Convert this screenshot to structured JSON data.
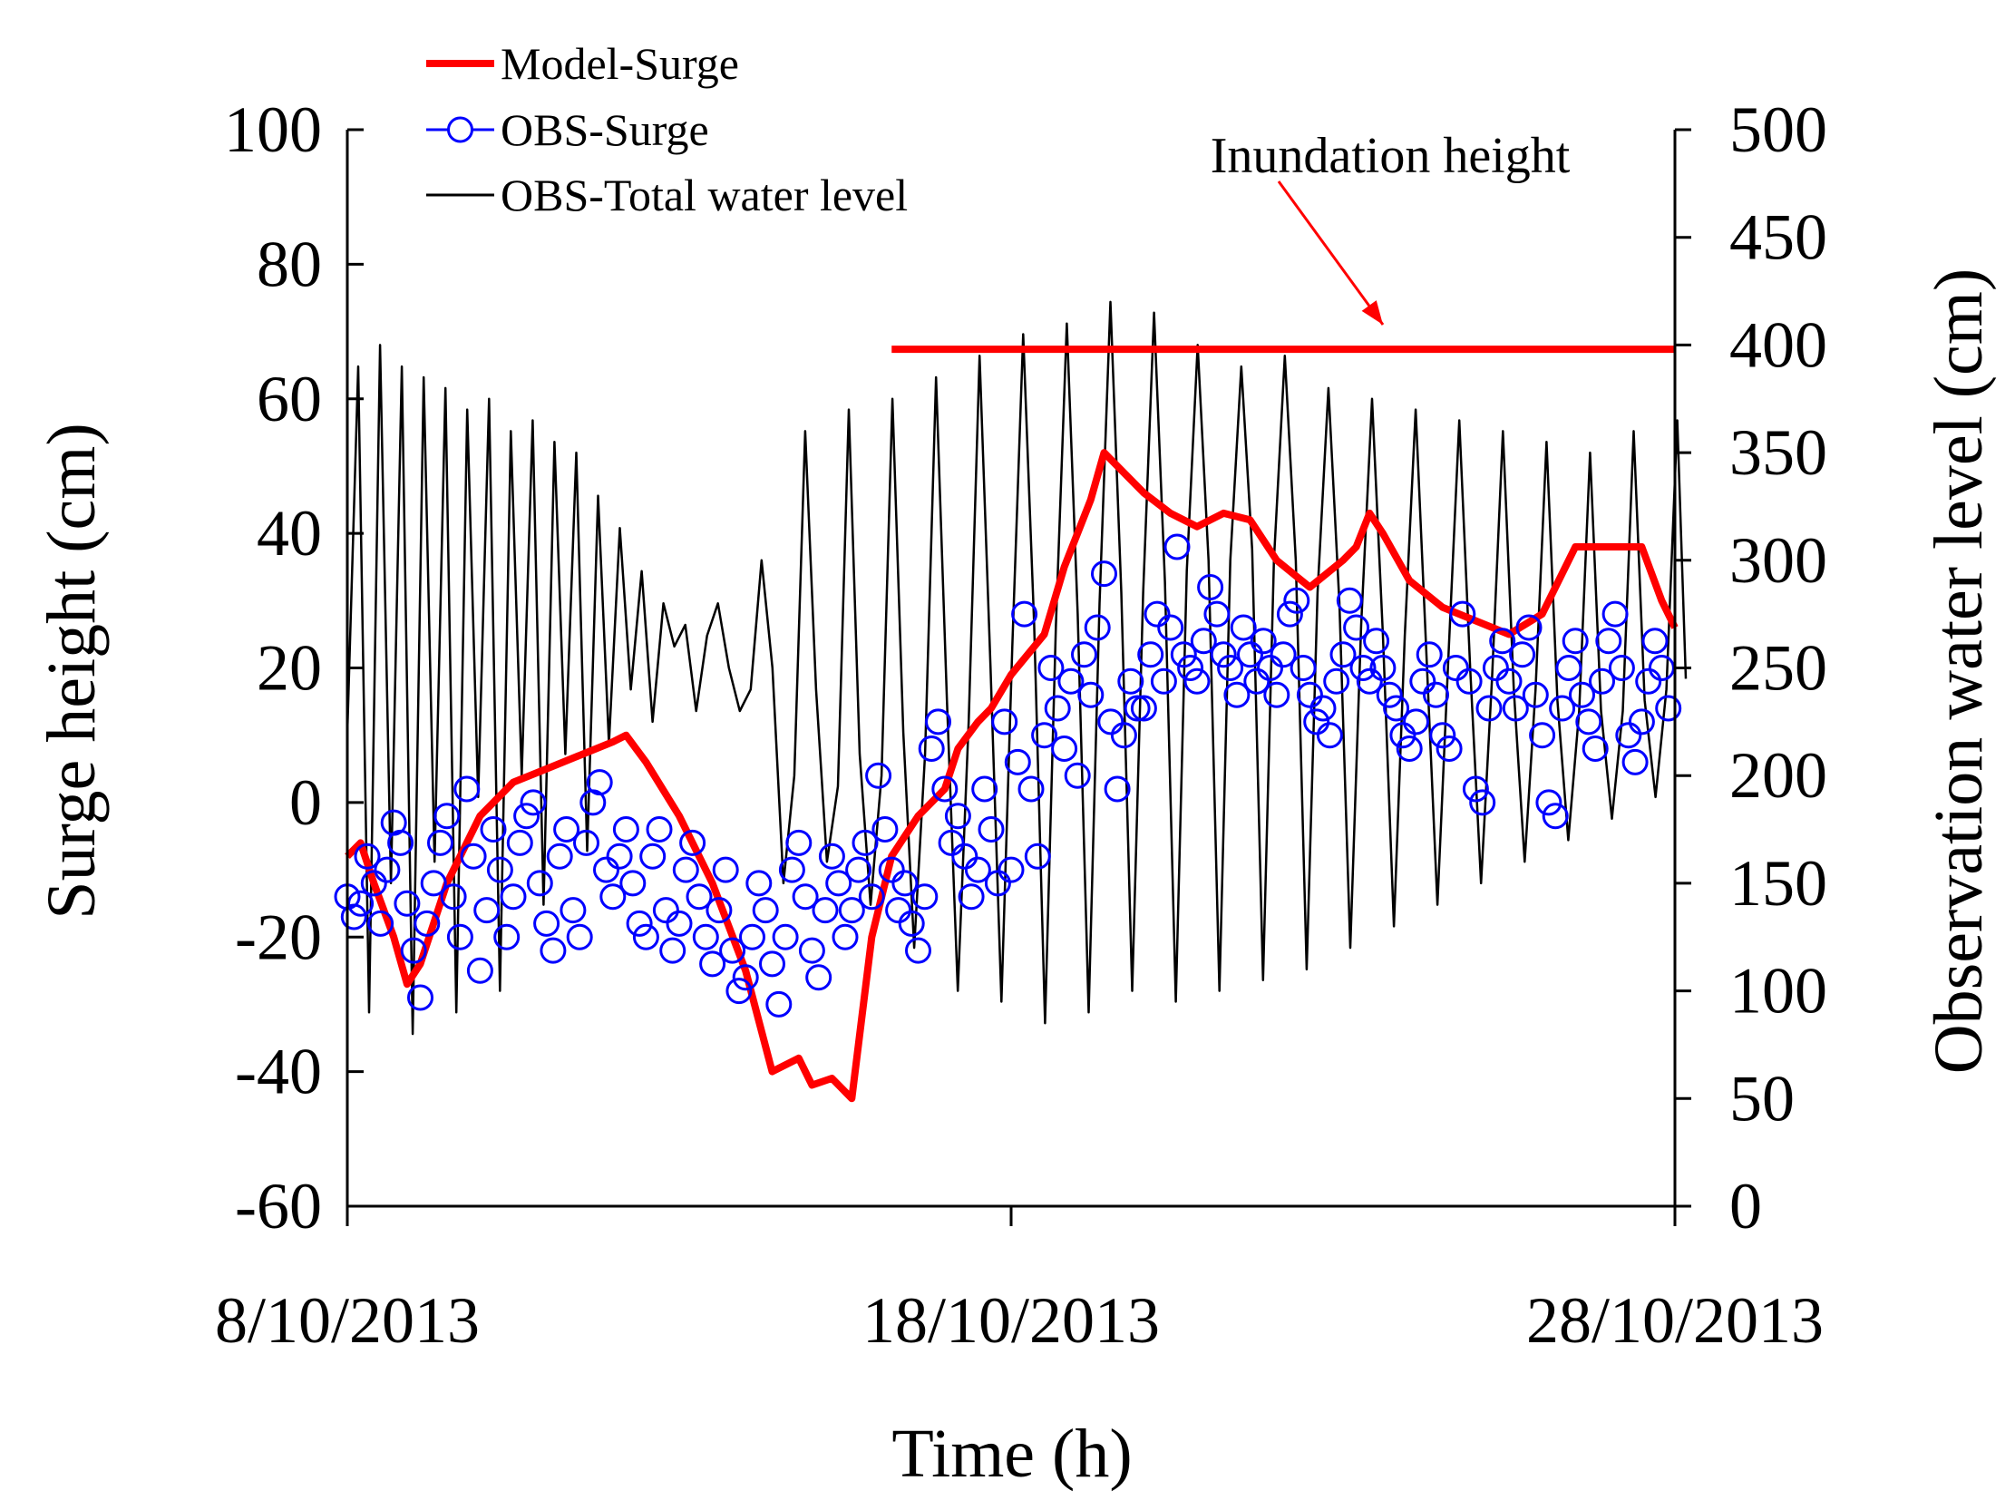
{
  "chart_data": {
    "type": "line",
    "title": "",
    "xlabel": "Time (h)",
    "ylabel": "Surge height  (cm)",
    "y2label": "Observation water level  (cm)",
    "x_range_days": [
      0,
      20
    ],
    "x_ticks": [
      {
        "day": 0,
        "label": "8/10/2013"
      },
      {
        "day": 10,
        "label": "18/10/2013"
      },
      {
        "day": 20,
        "label": "28/10/2013"
      }
    ],
    "ylim": [
      -60,
      100
    ],
    "y_ticks": [
      "-60",
      "-40",
      "-20",
      "0",
      "20",
      "40",
      "60",
      "80",
      "100"
    ],
    "y2lim": [
      0,
      500
    ],
    "y2_ticks": [
      "0",
      "50",
      "100",
      "150",
      "200",
      "250",
      "300",
      "350",
      "400",
      "450",
      "500"
    ],
    "legend": {
      "position": "top-left",
      "entries": [
        "Model-Surge",
        "OBS-Surge",
        "OBS-Total water level"
      ]
    },
    "annotation": {
      "text": "Inundation height",
      "level_cm": 398,
      "x_start_day": 8.2,
      "x_end_day": 20
    },
    "series": [
      {
        "name": "Model-Surge",
        "axis": "left",
        "color": "#ff0000",
        "x": [
          0,
          0.2,
          0.4,
          0.7,
          0.9,
          1.1,
          1.5,
          2,
          2.5,
          3,
          3.5,
          4,
          4.2,
          4.5,
          5,
          5.5,
          6,
          6.4,
          6.8,
          7,
          7.3,
          7.6,
          7.9,
          8.2,
          8.6,
          9.0,
          9.2,
          9.5,
          9.7,
          10,
          10.5,
          10.8,
          11,
          11.2,
          11.4,
          11.8,
          12,
          12.4,
          12.8,
          13.2,
          13.6,
          14,
          14.5,
          15,
          15.2,
          15.4,
          15.6,
          16,
          16.5,
          17,
          17.5,
          18,
          18.5,
          19,
          19.5,
          19.8,
          20
        ],
        "values": [
          -8,
          -6,
          -12,
          -20,
          -27,
          -24,
          -12,
          -2,
          3,
          5,
          7,
          9,
          10,
          6,
          -2,
          -12,
          -25,
          -40,
          -38,
          -42,
          -41,
          -44,
          -20,
          -8,
          -2,
          2,
          8,
          12,
          14,
          19,
          25,
          35,
          40,
          45,
          52,
          48,
          46,
          43,
          41,
          43,
          42,
          36,
          32,
          36,
          38,
          43,
          40,
          33,
          29,
          27,
          25,
          28,
          38,
          38,
          38,
          30,
          26
        ]
      },
      {
        "name": "OBS-Surge",
        "axis": "left",
        "color": "#0000ff",
        "x": [
          0,
          0.1,
          0.2,
          0.3,
          0.4,
          0.5,
          0.6,
          0.7,
          0.8,
          0.9,
          1.0,
          1.1,
          1.2,
          1.3,
          1.4,
          1.5,
          1.6,
          1.7,
          1.8,
          1.9,
          2.0,
          2.1,
          2.2,
          2.3,
          2.4,
          2.5,
          2.6,
          2.7,
          2.8,
          2.9,
          3.0,
          3.1,
          3.2,
          3.3,
          3.4,
          3.5,
          3.6,
          3.7,
          3.8,
          3.9,
          4.0,
          4.1,
          4.2,
          4.3,
          4.4,
          4.5,
          4.6,
          4.7,
          4.8,
          4.9,
          5.0,
          5.1,
          5.2,
          5.3,
          5.4,
          5.5,
          5.6,
          5.7,
          5.8,
          5.9,
          6.0,
          6.1,
          6.2,
          6.3,
          6.4,
          6.5,
          6.6,
          6.7,
          6.8,
          6.9,
          7.0,
          7.1,
          7.2,
          7.3,
          7.4,
          7.5,
          7.6,
          7.7,
          7.8,
          7.9,
          8.0,
          8.1,
          8.2,
          8.3,
          8.4,
          8.5,
          8.6,
          8.7,
          8.8,
          8.9,
          9.0,
          9.1,
          9.2,
          9.3,
          9.4,
          9.5,
          9.6,
          9.7,
          9.8,
          9.9,
          10.0,
          10.1,
          10.2,
          10.3,
          10.4,
          10.5,
          10.6,
          10.7,
          10.8,
          10.9,
          11.0,
          11.1,
          11.2,
          11.3,
          11.4,
          11.5,
          11.6,
          11.7,
          11.8,
          11.9,
          12.0,
          12.1,
          12.2,
          12.3,
          12.4,
          12.5,
          12.6,
          12.7,
          12.8,
          12.9,
          13.0,
          13.1,
          13.2,
          13.3,
          13.4,
          13.5,
          13.6,
          13.7,
          13.8,
          13.9,
          14.0,
          14.1,
          14.2,
          14.3,
          14.4,
          14.5,
          14.6,
          14.7,
          14.8,
          14.9,
          15.0,
          15.1,
          15.2,
          15.3,
          15.4,
          15.5,
          15.6,
          15.7,
          15.8,
          15.9,
          16.0,
          16.1,
          16.2,
          16.3,
          16.4,
          16.5,
          16.6,
          16.7,
          16.8,
          16.9,
          17.0,
          17.1,
          17.2,
          17.3,
          17.4,
          17.5,
          17.6,
          17.7,
          17.8,
          17.9,
          18.0,
          18.1,
          18.2,
          18.3,
          18.4,
          18.5,
          18.6,
          18.7,
          18.8,
          18.9,
          19.0,
          19.1,
          19.2,
          19.3,
          19.4,
          19.5,
          19.6,
          19.7,
          19.8,
          19.9
        ],
        "values": [
          -14,
          -17,
          -15,
          -8,
          -12,
          -18,
          -10,
          -3,
          -6,
          -15,
          -22,
          -29,
          -18,
          -12,
          -6,
          -2,
          -14,
          -20,
          2,
          -8,
          -25,
          -16,
          -4,
          -10,
          -20,
          -14,
          -6,
          -2,
          0,
          -12,
          -18,
          -22,
          -8,
          -4,
          -16,
          -20,
          -6,
          0,
          3,
          -10,
          -14,
          -8,
          -4,
          -12,
          -18,
          -20,
          -8,
          -4,
          -16,
          -22,
          -18,
          -10,
          -6,
          -14,
          -20,
          -24,
          -16,
          -10,
          -22,
          -28,
          -26,
          -20,
          -12,
          -16,
          -24,
          -30,
          -20,
          -10,
          -6,
          -14,
          -22,
          -26,
          -16,
          -8,
          -12,
          -20,
          -16,
          -10,
          -6,
          -14,
          4,
          -4,
          -10,
          -16,
          -12,
          -18,
          -22,
          -14,
          8,
          12,
          2,
          -6,
          -2,
          -8,
          -14,
          -10,
          2,
          -4,
          -12,
          12,
          -10,
          6,
          28,
          2,
          -8,
          10,
          20,
          14,
          8,
          18,
          4,
          22,
          16,
          26,
          34,
          12,
          2,
          10,
          18,
          14,
          14,
          22,
          28,
          18,
          26,
          38,
          22,
          20,
          18,
          24,
          32,
          28,
          22,
          20,
          16,
          26,
          22,
          18,
          24,
          20,
          16,
          22,
          28,
          30,
          20,
          16,
          12,
          14,
          10,
          18,
          22,
          30,
          26,
          20,
          18,
          24,
          20,
          16,
          14,
          10,
          8,
          12,
          18,
          22,
          16,
          10,
          8,
          20,
          28,
          18,
          2,
          0,
          14,
          20,
          24,
          18,
          14,
          22,
          26,
          16,
          10,
          0,
          -2,
          14,
          20,
          24,
          16,
          12,
          8,
          18,
          24,
          28,
          20,
          10,
          6,
          12,
          18,
          24,
          20,
          14
        ]
      },
      {
        "name": "OBS-Total water level",
        "axis": "right",
        "color": "#000000",
        "x_end_day": 20.2,
        "samples_per_day": 4,
        "values": [
          220,
          390,
          90,
          400,
          150,
          390,
          80,
          385,
          160,
          380,
          90,
          370,
          190,
          375,
          100,
          360,
          200,
          365,
          140,
          355,
          210,
          350,
          165,
          330,
          215,
          315,
          240,
          295,
          225,
          280,
          260,
          270,
          230,
          265,
          280,
          250,
          230,
          240,
          300,
          250,
          150,
          200,
          360,
          240,
          160,
          195,
          370,
          210,
          140,
          200,
          375,
          220,
          120,
          210,
          385,
          235,
          100,
          225,
          395,
          250,
          95,
          260,
          405,
          270,
          85,
          270,
          410,
          275,
          90,
          280,
          420,
          285,
          100,
          285,
          415,
          290,
          95,
          295,
          400,
          300,
          100,
          300,
          390,
          305,
          105,
          300,
          395,
          300,
          110,
          285,
          380,
          280,
          120,
          270,
          375,
          265,
          130,
          265,
          370,
          255,
          140,
          255,
          365,
          250,
          150,
          245,
          360,
          240,
          160,
          240,
          355,
          235,
          170,
          230,
          350,
          230,
          180,
          230,
          360,
          235,
          190,
          240,
          365,
          245
        ]
      }
    ]
  }
}
